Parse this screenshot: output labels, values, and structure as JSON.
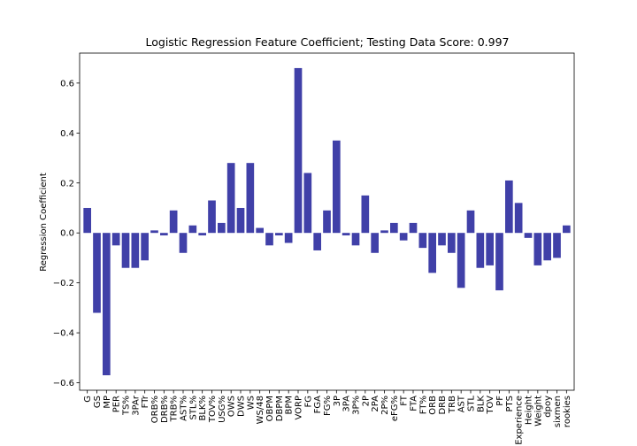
{
  "chart_data": {
    "type": "bar",
    "title": "Logistic Regression Feature Coefficient; Testing Data Score: 0.997",
    "xlabel": "",
    "ylabel": "Regression Coefficient",
    "ylim": [
      -0.63,
      0.72
    ],
    "yticks": [
      -0.6,
      -0.4,
      -0.2,
      0.0,
      0.2,
      0.4,
      0.6
    ],
    "ytick_labels": [
      "−0.6",
      "−0.4",
      "−0.2",
      "0.0",
      "0.2",
      "0.4",
      "0.6"
    ],
    "grid": false,
    "bar_color": "#4040a8",
    "categories": [
      "G",
      "GS",
      "MP",
      "PER",
      "TS%",
      "3PAr",
      "FTr",
      "ORB%",
      "DRB%",
      "TRB%",
      "AST%",
      "STL%",
      "BLK%",
      "TOV%",
      "USG%",
      "OWS",
      "DWS",
      "WS",
      "WS/48",
      "OBPM",
      "DBPM",
      "BPM",
      "VORP",
      "FG",
      "FGA",
      "FG%",
      "3P",
      "3PA",
      "3P%",
      "2P",
      "2PA",
      "2P%",
      "eFG%",
      "FT",
      "FTA",
      "FT%",
      "ORB",
      "DRB",
      "TRB",
      "AST",
      "STL",
      "BLK",
      "TOV",
      "PF",
      "PTS",
      "Experience",
      "Height",
      "Weight",
      "dpoy",
      "sixmen",
      "rookies"
    ],
    "values": [
      0.1,
      -0.32,
      -0.57,
      -0.05,
      -0.14,
      -0.14,
      -0.11,
      0.01,
      -0.01,
      0.09,
      -0.08,
      0.03,
      -0.01,
      0.13,
      0.04,
      0.28,
      0.1,
      0.28,
      0.02,
      -0.05,
      -0.01,
      -0.04,
      0.66,
      0.24,
      -0.07,
      0.09,
      0.37,
      -0.01,
      -0.05,
      0.15,
      -0.08,
      0.01,
      0.04,
      -0.03,
      0.04,
      -0.06,
      -0.16,
      -0.05,
      -0.08,
      -0.22,
      0.09,
      -0.14,
      -0.13,
      -0.23,
      0.21,
      0.12,
      -0.02,
      -0.13,
      -0.11,
      -0.1,
      0.03
    ]
  }
}
